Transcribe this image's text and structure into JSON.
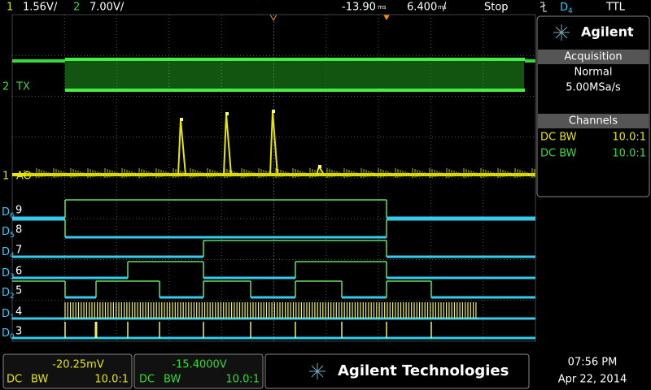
{
  "top_bar": {
    "ch1_num": "1",
    "ch1_scale": "1.56V/",
    "ch2_num": "2",
    "ch2_scale": "7.00V/",
    "delay": "-13.90",
    "delay_unit": "ms",
    "timebase": "6.400",
    "timebase_unit": "ms",
    "timebase_slash": "/",
    "run_state": "Stop",
    "trigger_source": "D",
    "trigger_sub": "4",
    "trigger_level": "TTL"
  },
  "side_panel": {
    "brand": "Agilent",
    "acquisition_title": "Acquisition",
    "mode": "Normal",
    "sample_rate": "5.00MSa/s",
    "channels_title": "Channels",
    "channels": [
      {
        "coupling": "DC BW",
        "probe": "10.0:1"
      },
      {
        "coupling": "DC BW",
        "probe": "10.0:1"
      }
    ]
  },
  "traces": {
    "analog": [
      {
        "num": "2",
        "label": "TX"
      },
      {
        "num": "1",
        "label": "AO"
      }
    ],
    "digital": [
      {
        "name": "D",
        "sub": "6",
        "label": "9"
      },
      {
        "name": "D",
        "sub": "5",
        "label": "8"
      },
      {
        "name": "D",
        "sub": "4",
        "label": "7"
      },
      {
        "name": "D",
        "sub": "3",
        "label": "6"
      },
      {
        "name": "D",
        "sub": "2",
        "label": "5"
      },
      {
        "name": "D",
        "sub": "1",
        "label": "4"
      },
      {
        "name": "D",
        "sub": "0",
        "label": "3"
      }
    ]
  },
  "bottom_bar": {
    "ch1": {
      "value": "-20.25mV",
      "coupling": "DC",
      "bw": "BW",
      "probe": "10.0:1"
    },
    "ch2": {
      "value": "-15.4000V",
      "coupling": "DC",
      "bw": "BW",
      "probe": "10.0:1"
    },
    "brand": "Agilent Technologies",
    "time": "07:56 PM",
    "date": "Apr 22, 2014"
  }
}
